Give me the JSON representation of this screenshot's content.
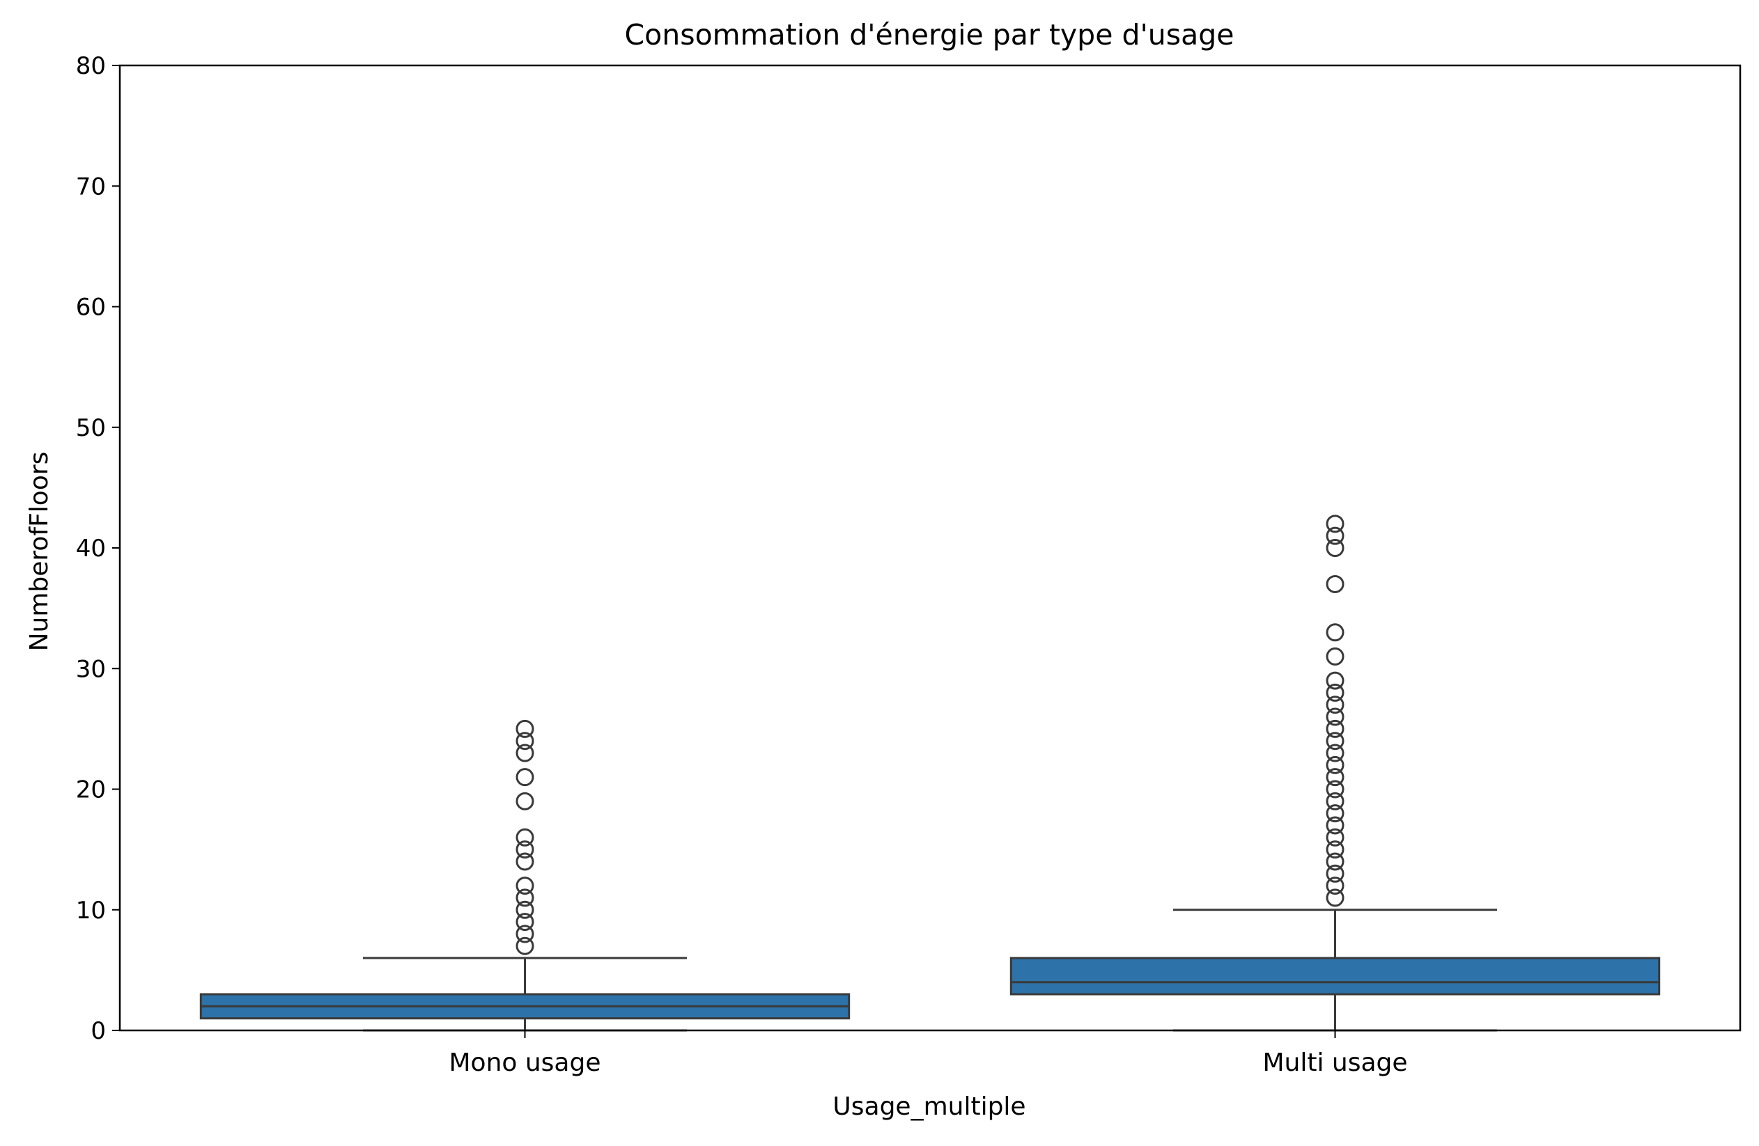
{
  "chart_data": {
    "type": "box",
    "title": "Consommation d'énergie par type d'usage",
    "xlabel": "Usage_multiple",
    "ylabel": "NumberofFloors",
    "ylim": [
      0,
      80
    ],
    "yticks": [
      0,
      10,
      20,
      30,
      40,
      50,
      60,
      70,
      80
    ],
    "categories": [
      "Mono usage",
      "Multi usage"
    ],
    "color": "#2d72a8",
    "boxes": [
      {
        "category": "Mono usage",
        "whisker_low": 0,
        "q1": 1,
        "median": 2,
        "q3": 3,
        "whisker_high": 6,
        "outliers": [
          7,
          8,
          9,
          10,
          11,
          12,
          14,
          15,
          16,
          19,
          21,
          23,
          24,
          25
        ]
      },
      {
        "category": "Multi usage",
        "whisker_low": 0,
        "q1": 3,
        "median": 4,
        "q3": 6,
        "whisker_high": 10,
        "outliers": [
          11,
          12,
          13,
          14,
          15,
          16,
          17,
          18,
          19,
          20,
          21,
          22,
          23,
          24,
          25,
          26,
          27,
          28,
          29,
          31,
          33,
          37,
          40,
          41,
          42
        ]
      }
    ]
  }
}
